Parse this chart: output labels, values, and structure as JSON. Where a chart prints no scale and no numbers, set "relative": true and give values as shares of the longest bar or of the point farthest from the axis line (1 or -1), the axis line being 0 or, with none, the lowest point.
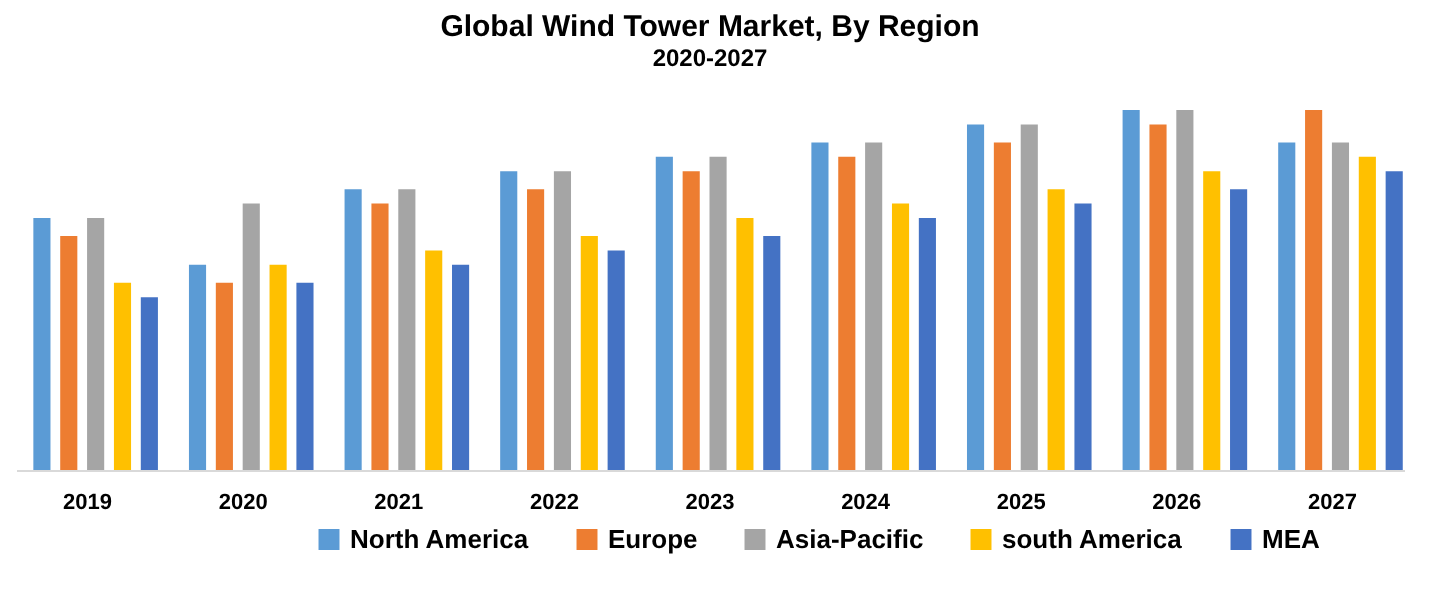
{
  "chart_data": {
    "type": "bar",
    "title": "Global Wind Tower Market, By Region",
    "subtitle": "2020-2027",
    "relative": true,
    "legend": "bottom",
    "categories": [
      "2019",
      "2020",
      "2021",
      "2022",
      "2023",
      "2024",
      "2025",
      "2026",
      "2027"
    ],
    "series": [
      {
        "name": "North America",
        "color": "#5b9bd5",
        "values": [
          0.7,
          0.57,
          0.78,
          0.83,
          0.87,
          0.91,
          0.96,
          1,
          0.91
        ]
      },
      {
        "name": "Europe",
        "color": "#ed7d31",
        "values": [
          0.65,
          0.52,
          0.74,
          0.78,
          0.83,
          0.87,
          0.91,
          0.96,
          1
        ]
      },
      {
        "name": "Asia-Pacific",
        "color": "#a5a5a5",
        "values": [
          0.7,
          0.74,
          0.78,
          0.83,
          0.87,
          0.91,
          0.96,
          1,
          0.91
        ]
      },
      {
        "name": "south America",
        "color": "#ffc000",
        "values": [
          0.52,
          0.57,
          0.61,
          0.65,
          0.7,
          0.74,
          0.78,
          0.83,
          0.87
        ]
      },
      {
        "name": "MEA",
        "color": "#4472c4",
        "values": [
          0.48,
          0.52,
          0.57,
          0.61,
          0.65,
          0.7,
          0.74,
          0.78,
          0.83
        ]
      }
    ]
  }
}
